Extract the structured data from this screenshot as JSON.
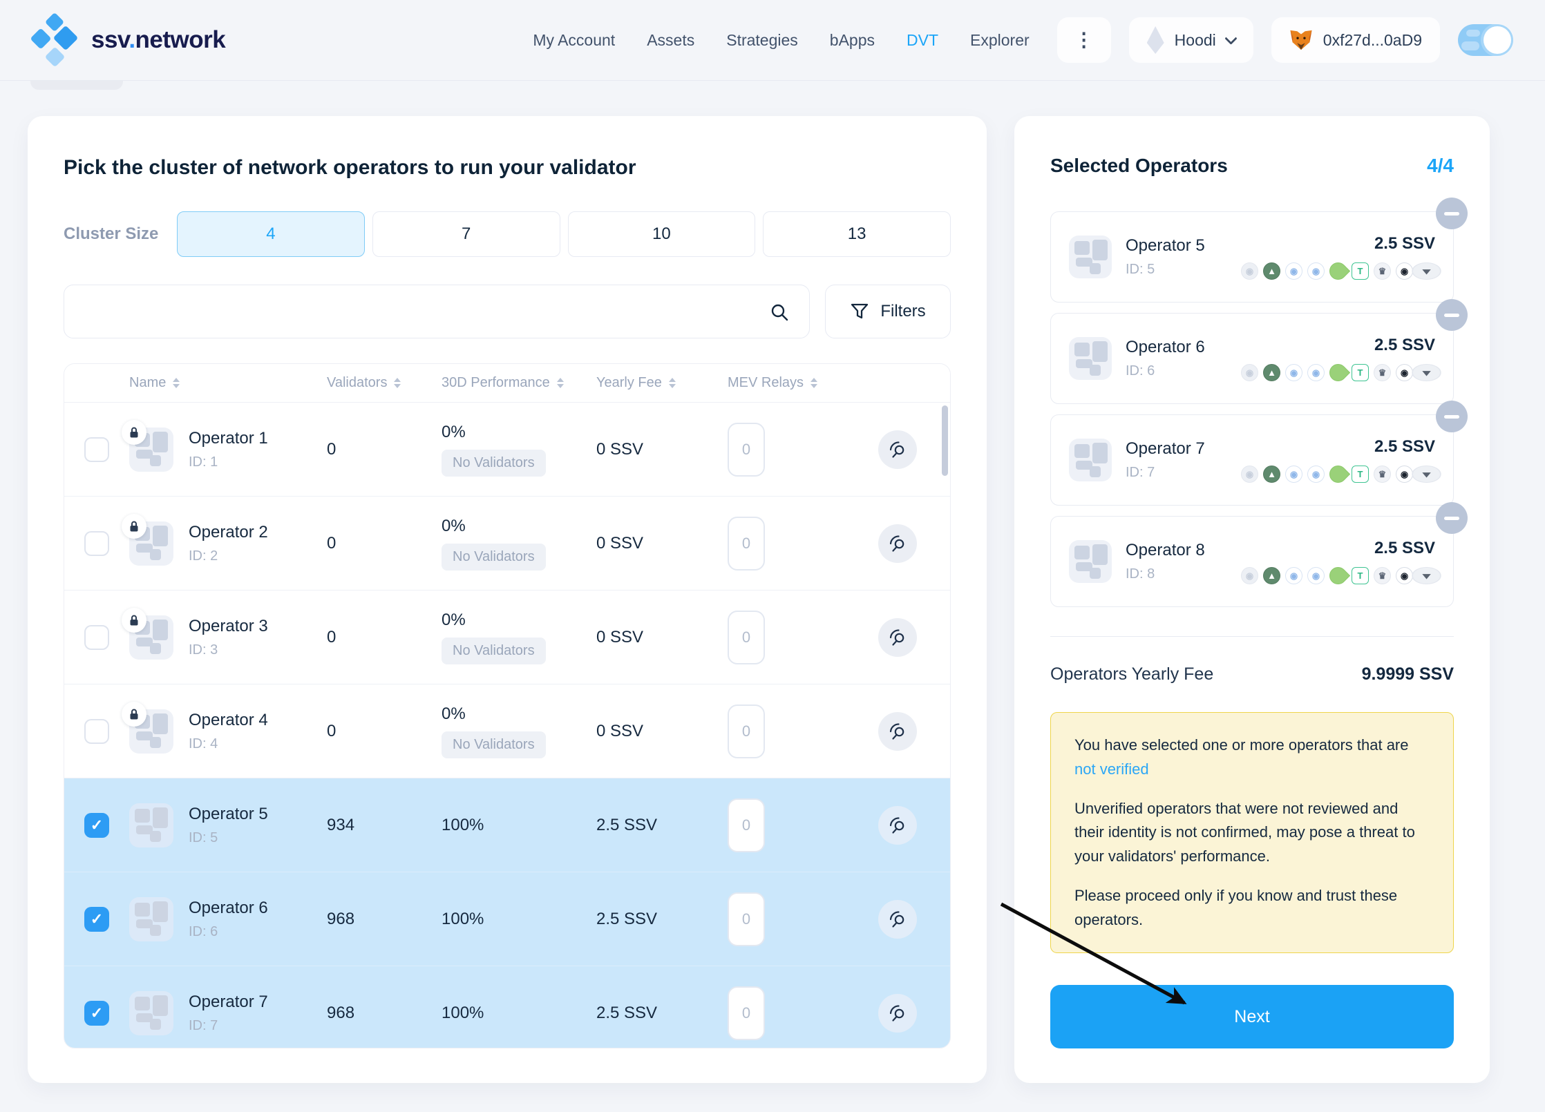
{
  "header": {
    "logo": {
      "prefix": "ssv",
      "dot": ".",
      "suffix": "network"
    },
    "nav": [
      {
        "label": "My Account",
        "active": false
      },
      {
        "label": "Assets",
        "active": false
      },
      {
        "label": "Strategies",
        "active": false
      },
      {
        "label": "bApps",
        "active": false
      },
      {
        "label": "DVT",
        "active": true
      },
      {
        "label": "Explorer",
        "active": false
      }
    ],
    "network": {
      "label": "Hoodi"
    },
    "wallet": {
      "address": "0xf27d...0aD9"
    }
  },
  "icons": {
    "kebab": "⋮",
    "check": "✓"
  },
  "main": {
    "title": "Pick the cluster of network operators to run your validator",
    "cluster_size": {
      "label": "Cluster Size",
      "options": [
        {
          "value": "4",
          "selected": true
        },
        {
          "value": "7",
          "selected": false
        },
        {
          "value": "10",
          "selected": false
        },
        {
          "value": "13",
          "selected": false
        }
      ]
    },
    "search": {
      "placeholder": ""
    },
    "filters_label": "Filters",
    "table": {
      "columns": [
        "Name",
        "Validators",
        "30D Performance",
        "Yearly Fee",
        "MEV Relays"
      ],
      "rows": [
        {
          "name": "Operator 1",
          "id": "ID: 1",
          "validators": "0",
          "performance": "0%",
          "badge": "No Validators",
          "fee": "0 SSV",
          "mev": "0",
          "selected": false,
          "locked": true
        },
        {
          "name": "Operator 2",
          "id": "ID: 2",
          "validators": "0",
          "performance": "0%",
          "badge": "No Validators",
          "fee": "0 SSV",
          "mev": "0",
          "selected": false,
          "locked": true
        },
        {
          "name": "Operator 3",
          "id": "ID: 3",
          "validators": "0",
          "performance": "0%",
          "badge": "No Validators",
          "fee": "0 SSV",
          "mev": "0",
          "selected": false,
          "locked": true
        },
        {
          "name": "Operator 4",
          "id": "ID: 4",
          "validators": "0",
          "performance": "0%",
          "badge": "No Validators",
          "fee": "0 SSV",
          "mev": "0",
          "selected": false,
          "locked": true
        },
        {
          "name": "Operator 5",
          "id": "ID: 5",
          "validators": "934",
          "performance": "100%",
          "badge": null,
          "fee": "2.5 SSV",
          "mev": "0",
          "selected": true,
          "locked": false
        },
        {
          "name": "Operator 6",
          "id": "ID: 6",
          "validators": "968",
          "performance": "100%",
          "badge": null,
          "fee": "2.5 SSV",
          "mev": "0",
          "selected": true,
          "locked": false
        },
        {
          "name": "Operator 7",
          "id": "ID: 7",
          "validators": "968",
          "performance": "100%",
          "badge": null,
          "fee": "2.5 SSV",
          "mev": "0",
          "selected": true,
          "locked": false
        }
      ]
    }
  },
  "sidebar": {
    "title": "Selected Operators",
    "count": "4/4",
    "cards": [
      {
        "name": "Operator 5",
        "id": "ID: 5",
        "fee": "2.5 SSV"
      },
      {
        "name": "Operator 6",
        "id": "ID: 6",
        "fee": "2.5 SSV"
      },
      {
        "name": "Operator 7",
        "id": "ID: 7",
        "fee": "2.5 SSV"
      },
      {
        "name": "Operator 8",
        "id": "ID: 8",
        "fee": "2.5 SSV"
      }
    ],
    "yearly_fee_label": "Operators Yearly Fee",
    "yearly_fee_value": "9.9999 SSV",
    "warning": {
      "line1": "You have selected one or more operators that are",
      "link": "not verified",
      "para2": "Unverified operators that were not reviewed and their identity is not confirmed, may pose a threat to your validators' performance.",
      "para3": "Please proceed only if you know and trust these operators."
    },
    "next_label": "Next"
  },
  "mev_relay_icons": [
    {
      "name": "relay-swirl-gray-icon",
      "glyph": "◉",
      "fg": "#c7cfdc",
      "bg": "#edf0f5",
      "border": "#e3e7ee",
      "shape": "circle"
    },
    {
      "name": "relay-mountain-green-icon",
      "glyph": "▲",
      "fg": "#ffffff",
      "bg": "#5f8a6d",
      "border": "#547c61",
      "shape": "circle"
    },
    {
      "name": "relay-swirl-blue-icon",
      "glyph": "◉",
      "fg": "#8fb7e9",
      "bg": "#ffffff",
      "border": "#d9e4f3",
      "shape": "circle"
    },
    {
      "name": "relay-swirl-blue-2-icon",
      "glyph": "◉",
      "fg": "#8fb7e9",
      "bg": "#ffffff",
      "border": "#d9e4f3",
      "shape": "circle"
    },
    {
      "name": "relay-leaf-green-icon",
      "glyph": "",
      "fg": "#ffffff",
      "bg": "#9ad179",
      "border": "#8cc96a",
      "shape": "leaf"
    },
    {
      "name": "relay-titan-icon",
      "glyph": "T",
      "fg": "#2bb783",
      "bg": "#ffffff",
      "border": "#3ec492",
      "shape": "square"
    },
    {
      "name": "relay-crown-icon",
      "glyph": "♛",
      "fg": "#5b6575",
      "bg": "#f1f3f7",
      "border": "#e2e6ed",
      "shape": "circle"
    },
    {
      "name": "relay-swirl-black-icon",
      "glyph": "◉",
      "fg": "#1c232e",
      "bg": "#ffffff",
      "border": "#d8dde6",
      "shape": "circle"
    },
    {
      "name": "relay-wings-icon",
      "glyph": "▾",
      "fg": "#59626f",
      "bg": "#eef1f5",
      "border": "#e3e7ee",
      "shape": "circle wide"
    }
  ],
  "colors": {
    "accent_blue": "#1ba5f8",
    "selected_row_bg": "#cbe7fb",
    "checkbox_blue": "#2d9cf4",
    "warning_bg": "#fbf4d6",
    "warning_border": "#eed54b",
    "next_button": "#1ba2f5",
    "logo_navy": "#171c4e"
  }
}
